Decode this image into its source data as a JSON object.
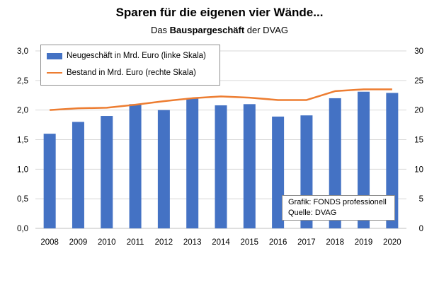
{
  "title": "Sparen für die eigenen vier Wände...",
  "subtitle_pre": "Das ",
  "subtitle_bold": "Bauspargeschäft",
  "subtitle_post": " der DVAG",
  "source": {
    "line1": "Grafik: FONDS professionell",
    "line2": "Quelle: DVAG"
  },
  "colors": {
    "bar": "#4472C4",
    "line": "#ED7D31",
    "grid": "#d9d9d9"
  },
  "chart_data": {
    "type": "bar",
    "categories": [
      "2008",
      "2009",
      "2010",
      "2011",
      "2012",
      "2013",
      "2014",
      "2015",
      "2016",
      "2017",
      "2018",
      "2019",
      "2020"
    ],
    "series": [
      {
        "name": "Neugeschäft in Mrd. Euro (linke Skala)",
        "type": "bar",
        "axis": "left",
        "values": [
          1.6,
          1.8,
          1.9,
          2.1,
          2.0,
          2.2,
          2.08,
          2.1,
          1.89,
          1.91,
          2.2,
          2.31,
          2.29
        ]
      },
      {
        "name": "Bestand in Mrd. Euro (rechte Skala)",
        "type": "line",
        "axis": "right",
        "values": [
          20.0,
          20.3,
          20.4,
          20.9,
          21.5,
          22.0,
          22.3,
          22.1,
          21.7,
          21.7,
          23.2,
          23.5,
          23.5
        ]
      }
    ],
    "left_axis": {
      "ylim": [
        0,
        3
      ],
      "ticks": [
        "0,0",
        "0,5",
        "1,0",
        "1,5",
        "2,0",
        "2,5",
        "3,0"
      ]
    },
    "right_axis": {
      "ylim": [
        0,
        30
      ],
      "ticks": [
        "0",
        "5",
        "10",
        "15",
        "20",
        "25",
        "30"
      ]
    },
    "grid": true,
    "legend_position": "top-left"
  }
}
